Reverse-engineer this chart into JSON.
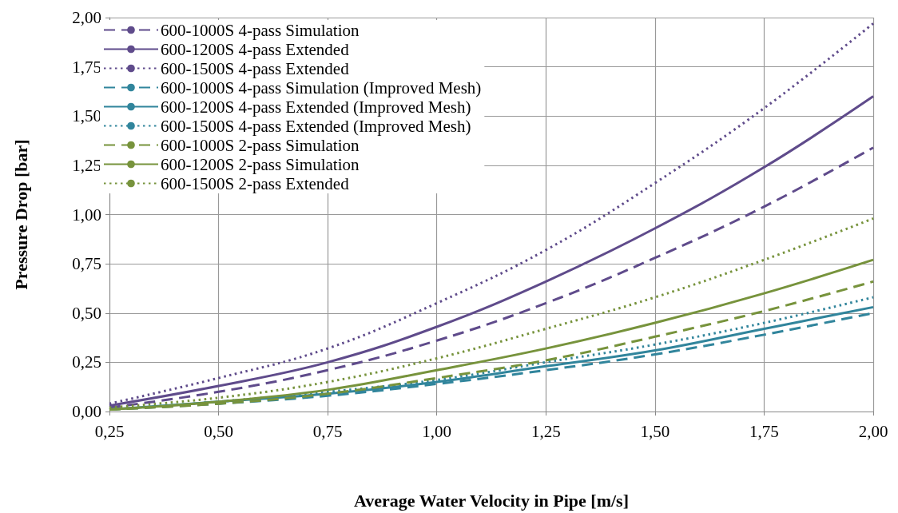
{
  "chart_data": {
    "type": "line",
    "xlabel": "Average Water Velocity in Pipe [m/s]",
    "ylabel": "Pressure Drop [bar]",
    "x": [
      0.25,
      0.5,
      0.75,
      1.0,
      1.25,
      1.5,
      1.75,
      2.0
    ],
    "xlim": [
      0.25,
      2.0
    ],
    "xticks": [
      {
        "value": 0.25,
        "label": "0,25"
      },
      {
        "value": 0.5,
        "label": "0,50"
      },
      {
        "value": 0.75,
        "label": "0,75"
      },
      {
        "value": 1.0,
        "label": "1,00"
      },
      {
        "value": 1.25,
        "label": "1,25"
      },
      {
        "value": 1.5,
        "label": "1,50"
      },
      {
        "value": 1.75,
        "label": "1,75"
      },
      {
        "value": 2.0,
        "label": "2,00"
      }
    ],
    "ylim": [
      0,
      2.0
    ],
    "yticks": [
      {
        "value": 0,
        "label": "0,00"
      },
      {
        "value": 0.25,
        "label": "0,25"
      },
      {
        "value": 0.5,
        "label": "0,50"
      },
      {
        "value": 0.75,
        "label": "0,75"
      },
      {
        "value": 1.0,
        "label": "1,00"
      },
      {
        "value": 1.25,
        "label": "1,25"
      },
      {
        "value": 1.5,
        "label": "1,50"
      },
      {
        "value": 1.75,
        "label": "1,75"
      },
      {
        "value": 2.0,
        "label": "2,00"
      }
    ],
    "grid": true,
    "legend": "top left",
    "marker": "none",
    "series": [
      {
        "name": "600-1000S 4-pass Simulation",
        "color": "#5f4b8b",
        "line_style": "dashed",
        "values": [
          0.02,
          0.1,
          0.21,
          0.36,
          0.55,
          0.78,
          1.04,
          1.34
        ]
      },
      {
        "name": "600-1200S 4-pass Extended",
        "color": "#5f4b8b",
        "line_style": "solid",
        "values": [
          0.03,
          0.13,
          0.25,
          0.43,
          0.66,
          0.93,
          1.24,
          1.6
        ]
      },
      {
        "name": "600-1500S 4-pass Extended",
        "color": "#5f4b8b",
        "line_style": "dotted",
        "values": [
          0.04,
          0.17,
          0.32,
          0.55,
          0.82,
          1.16,
          1.54,
          1.97
        ]
      },
      {
        "name": "600-1000S 4-pass Simulation (Improved Mesh)",
        "color": "#31859c",
        "line_style": "dashed",
        "values": [
          0.01,
          0.04,
          0.08,
          0.14,
          0.21,
          0.29,
          0.39,
          0.5
        ]
      },
      {
        "name": "600-1200S 4-pass Extended (Improved Mesh)",
        "color": "#31859c",
        "line_style": "solid",
        "values": [
          0.01,
          0.05,
          0.09,
          0.15,
          0.23,
          0.31,
          0.42,
          0.53
        ]
      },
      {
        "name": "600-1500S 4-pass Extended (Improved Mesh)",
        "color": "#31859c",
        "line_style": "dotted",
        "values": [
          0.01,
          0.05,
          0.1,
          0.16,
          0.25,
          0.34,
          0.45,
          0.58
        ]
      },
      {
        "name": "600-1000S 2-pass Simulation",
        "color": "#77933c",
        "line_style": "dashed",
        "values": [
          0.01,
          0.04,
          0.09,
          0.17,
          0.26,
          0.38,
          0.51,
          0.66
        ]
      },
      {
        "name": "600-1200S 2-pass Simulation",
        "color": "#77933c",
        "line_style": "solid",
        "values": [
          0.01,
          0.05,
          0.11,
          0.21,
          0.32,
          0.45,
          0.6,
          0.77
        ]
      },
      {
        "name": "600-1500S 2-pass Extended",
        "color": "#77933c",
        "line_style": "dotted",
        "values": [
          0.02,
          0.07,
          0.15,
          0.27,
          0.42,
          0.58,
          0.77,
          0.98
        ]
      }
    ]
  }
}
